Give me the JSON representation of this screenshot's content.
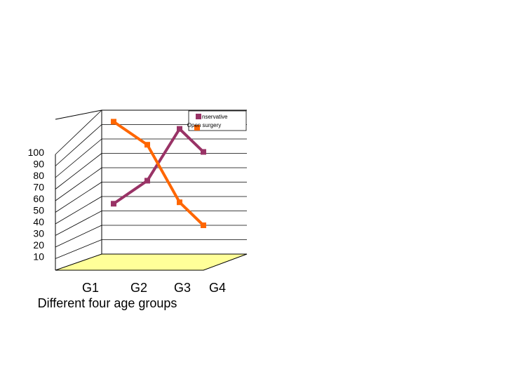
{
  "chart_data": {
    "type": "line",
    "title": "",
    "xlabel": "Different four age groups",
    "ylabel": "",
    "categories": [
      "G1",
      "G2",
      "G3",
      "G4"
    ],
    "y_ticks": [
      "100",
      "90",
      "80",
      "70",
      "60",
      "50",
      "40",
      "30",
      "20",
      "10"
    ],
    "ylim": [
      0,
      100
    ],
    "grid": true,
    "legend_position": "top-right",
    "series": [
      {
        "name": "Conservative",
        "legend_text": "nservative",
        "color": "#993366",
        "values": [
          35,
          51,
          87,
          71
        ]
      },
      {
        "name": "Open surgery",
        "legend_text": "Open surgery",
        "color": "#ff6600",
        "values": [
          92,
          76,
          36,
          20
        ]
      }
    ],
    "floor_color": "#ffff99"
  }
}
